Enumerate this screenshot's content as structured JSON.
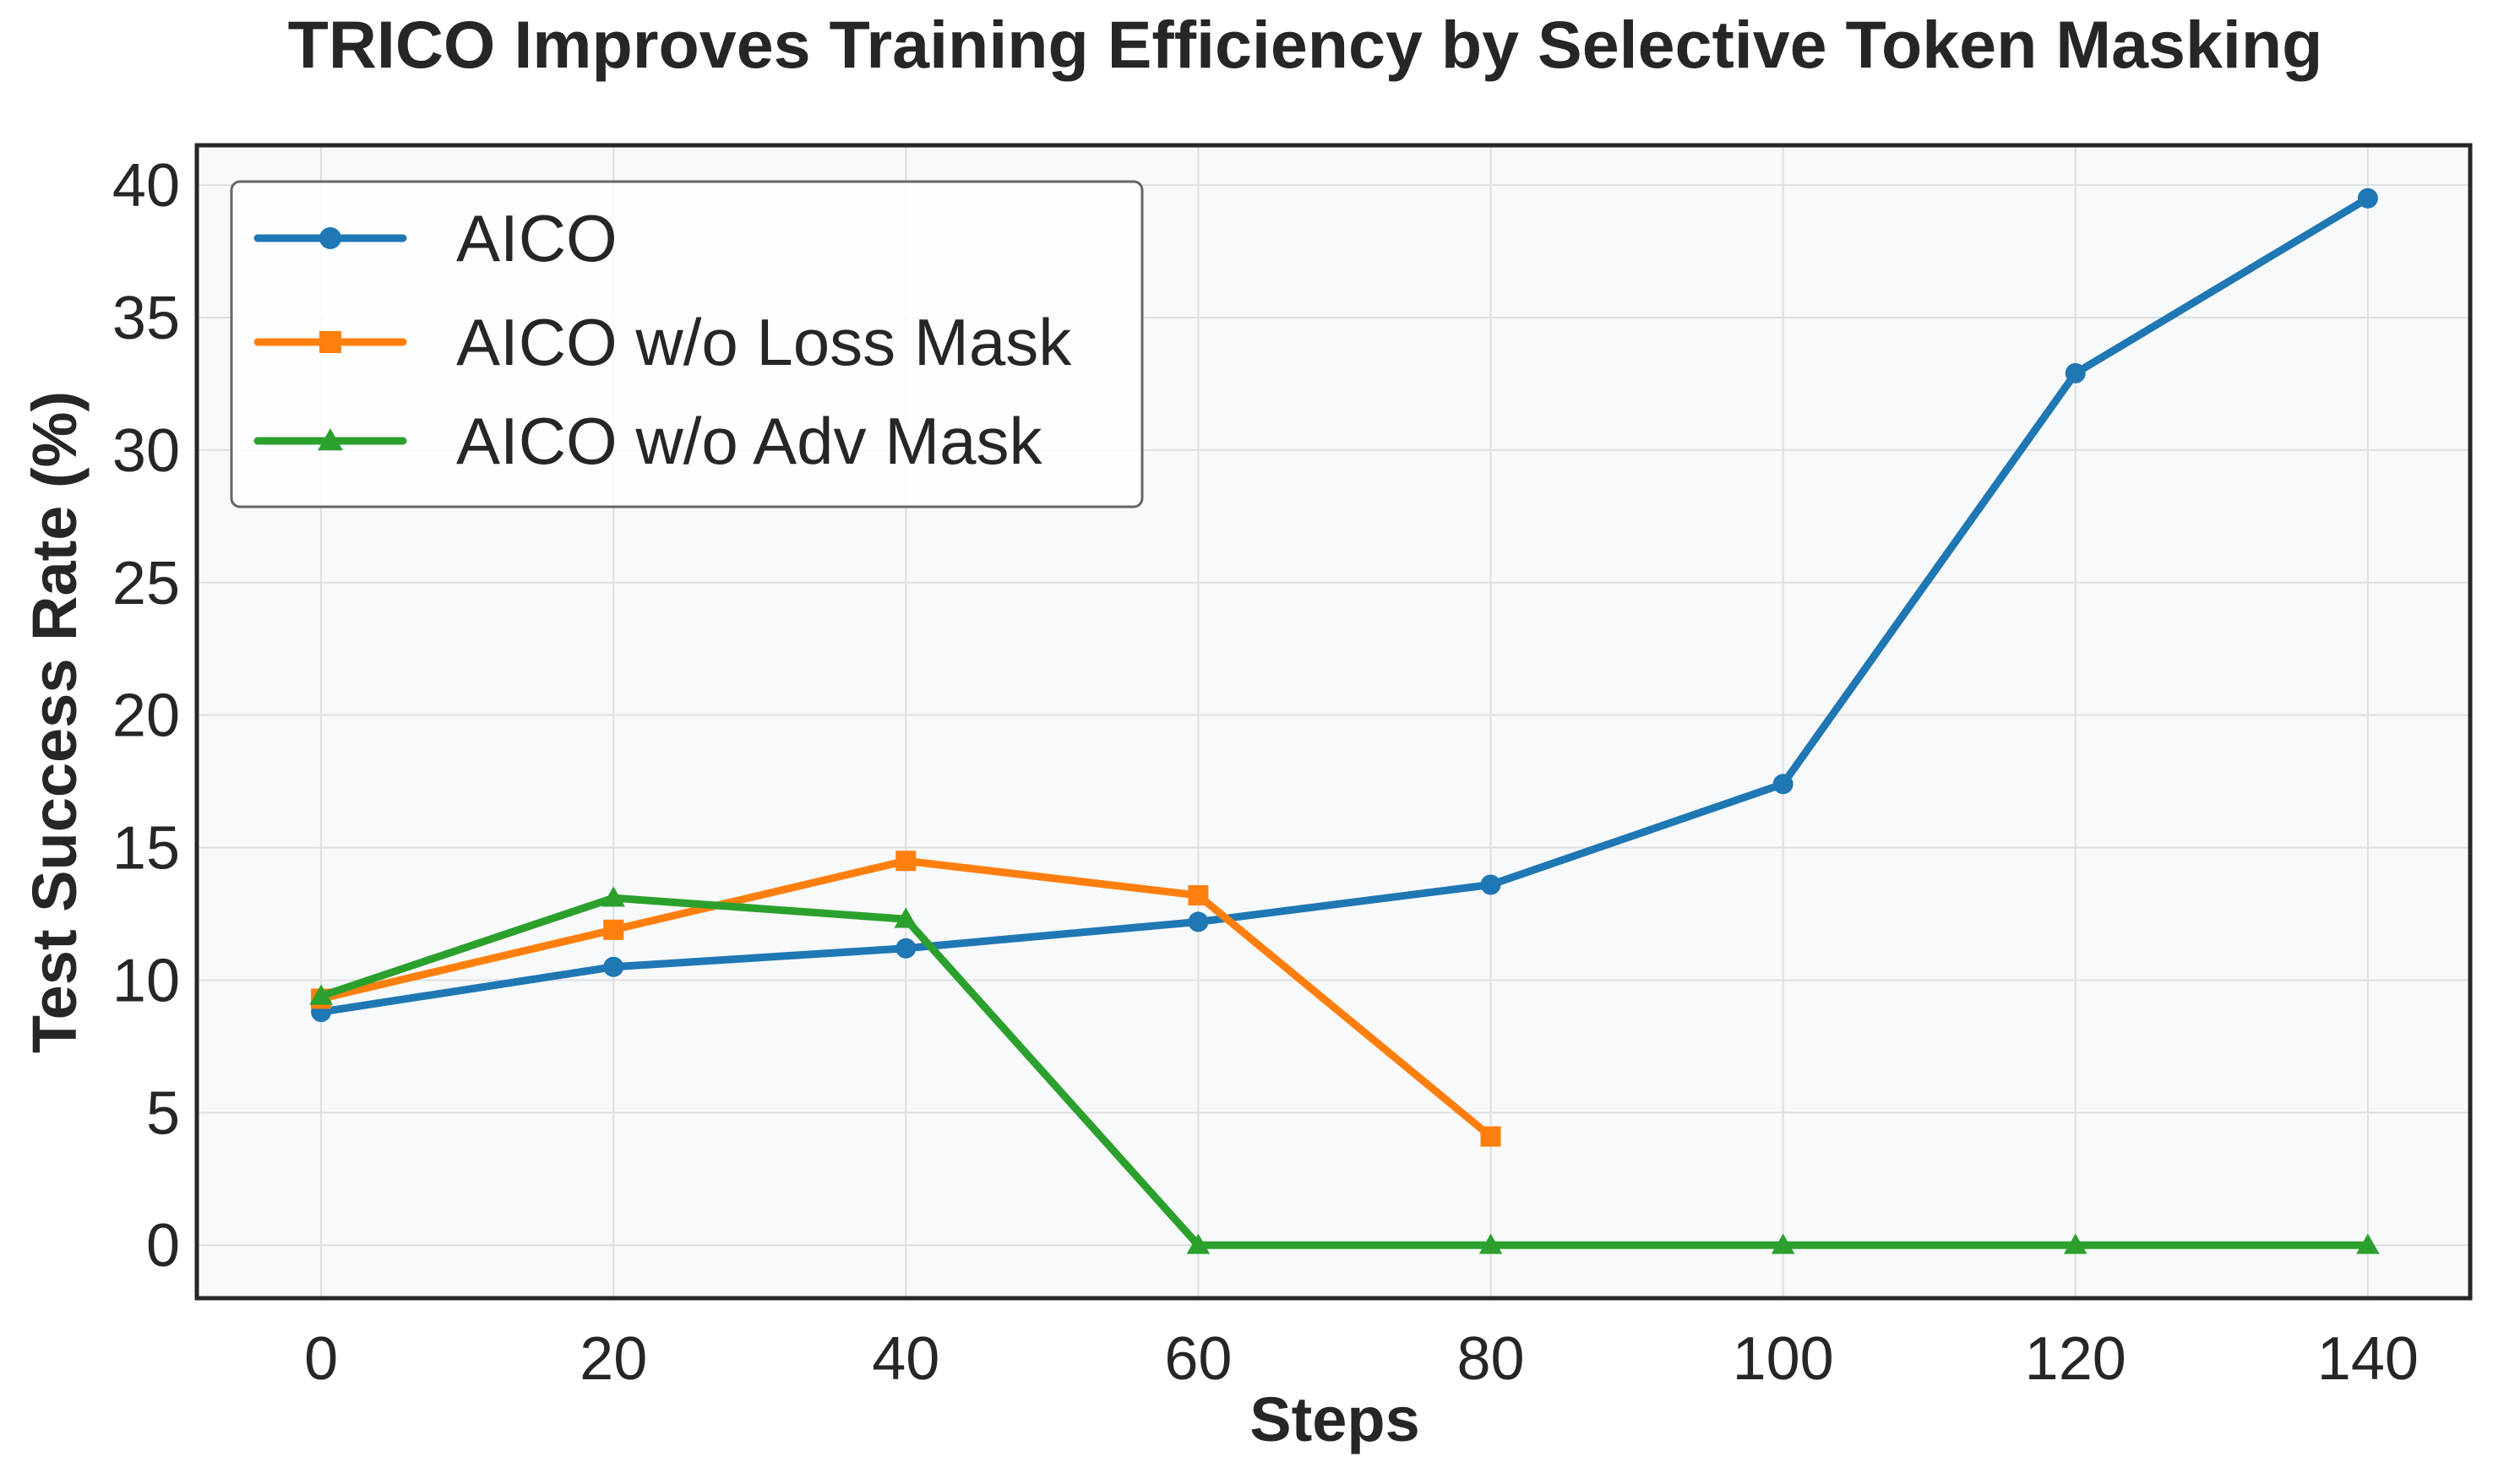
{
  "chart_data": {
    "type": "line",
    "title": "TRICO Improves Training Efficiency by Selective Token Masking",
    "xlabel": "Steps",
    "ylabel": "Test Success Rate (%)",
    "xlim": [
      -8.5,
      147
    ],
    "ylim": [
      -2,
      41.5
    ],
    "xticks": [
      0,
      20,
      40,
      60,
      80,
      100,
      120,
      140
    ],
    "yticks": [
      0,
      5,
      10,
      15,
      20,
      25,
      30,
      35,
      40
    ],
    "grid": true,
    "legend_position": "top-left",
    "series": [
      {
        "name": "AICO",
        "color": "#1f77b4",
        "marker": "circle",
        "x": [
          0,
          20,
          40,
          60,
          80,
          100,
          120,
          140
        ],
        "values": [
          8.8,
          10.5,
          11.2,
          12.2,
          13.6,
          17.4,
          32.9,
          39.5
        ]
      },
      {
        "name": "AICO w/o Loss Mask",
        "color": "#ff7f0e",
        "marker": "square",
        "x": [
          0,
          20,
          40,
          60,
          80
        ],
        "values": [
          9.3,
          11.9,
          14.5,
          13.2,
          4.1
        ]
      },
      {
        "name": "AICO w/o Adv Mask",
        "color": "#2ca02c",
        "marker": "triangle",
        "x": [
          0,
          20,
          40,
          60,
          80,
          100,
          120,
          140
        ],
        "values": [
          9.4,
          13.1,
          12.3,
          0.0,
          0.0,
          0.0,
          0.0,
          0.0
        ]
      }
    ]
  }
}
